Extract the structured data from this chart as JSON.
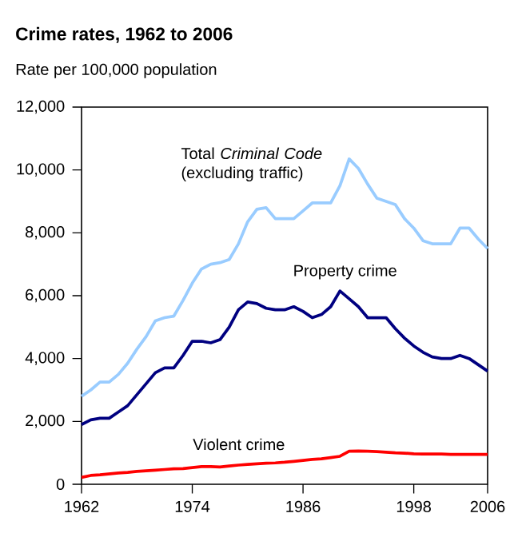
{
  "chart_data": {
    "type": "line",
    "title": "Crime rates, 1962 to 2006",
    "subtitle": "Rate per 100,000 population",
    "x": [
      1962,
      1963,
      1964,
      1965,
      1966,
      1967,
      1968,
      1969,
      1970,
      1971,
      1972,
      1973,
      1974,
      1975,
      1976,
      1977,
      1978,
      1979,
      1980,
      1981,
      1982,
      1983,
      1984,
      1985,
      1986,
      1987,
      1988,
      1989,
      1990,
      1991,
      1992,
      1993,
      1994,
      1995,
      1996,
      1997,
      1998,
      1999,
      2000,
      2001,
      2002,
      2003,
      2004,
      2005,
      2006
    ],
    "series": [
      {
        "name": "Total *Criminal Code* (excluding traffic)",
        "color": "#99ccff",
        "values": [
          2800,
          3000,
          3250,
          3250,
          3500,
          3850,
          4300,
          4700,
          5200,
          5300,
          5350,
          5850,
          6400,
          6850,
          7000,
          7050,
          7150,
          7650,
          8350,
          8750,
          8800,
          8450,
          8450,
          8450,
          8700,
          8950,
          8950,
          8950,
          9500,
          10350,
          10050,
          9550,
          9100,
          9000,
          8900,
          8450,
          8150,
          7750,
          7650,
          7650,
          7650,
          8150,
          8150,
          7800,
          7500
        ]
      },
      {
        "name": "Property crime",
        "color": "#000080",
        "values": [
          1900,
          2050,
          2100,
          2100,
          2300,
          2500,
          2850,
          3200,
          3550,
          3700,
          3700,
          4100,
          4550,
          4550,
          4500,
          4600,
          5000,
          5550,
          5800,
          5750,
          5600,
          5550,
          5550,
          5650,
          5500,
          5300,
          5400,
          5650,
          6150,
          5900,
          5650,
          5300,
          5300,
          5300,
          4950,
          4650,
          4400,
          4200,
          4050,
          4000,
          4000,
          4100,
          4000,
          3800,
          3600
        ]
      },
      {
        "name": "Violent crime",
        "color": "#ff0000",
        "values": [
          220,
          280,
          300,
          330,
          360,
          380,
          410,
          430,
          450,
          470,
          490,
          500,
          530,
          560,
          560,
          550,
          580,
          610,
          630,
          650,
          670,
          680,
          700,
          730,
          760,
          790,
          810,
          850,
          890,
          1050,
          1060,
          1050,
          1040,
          1020,
          1000,
          990,
          970,
          960,
          960,
          960,
          950,
          950,
          950,
          950,
          950
        ]
      }
    ],
    "xlim": [
      1962,
      2006
    ],
    "xticks": [
      1962,
      1974,
      1986,
      1998,
      2006
    ],
    "ylim": [
      0,
      12000
    ],
    "yticks": [
      0,
      {
        "value": 2000,
        "label": "2,000"
      },
      {
        "value": 4000,
        "label": "4,000"
      },
      {
        "value": 6000,
        "label": "6,000"
      },
      {
        "value": 8000,
        "label": "8,000"
      },
      {
        "value": 10000,
        "label": "10,000"
      },
      {
        "value": 12000,
        "label": "12,000"
      }
    ]
  }
}
